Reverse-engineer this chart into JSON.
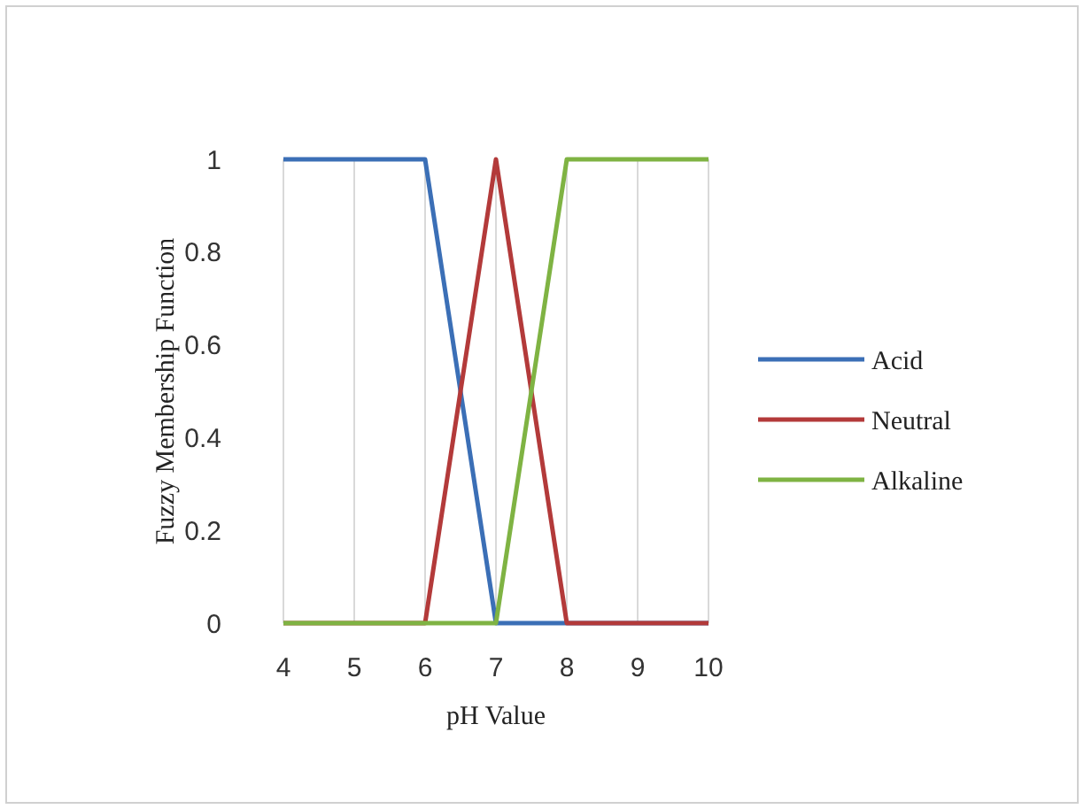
{
  "chart_data": {
    "type": "line",
    "xlabel": "pH Value",
    "ylabel": "Fuzzy Membership Function",
    "x": [
      4,
      5,
      6,
      7,
      8,
      9,
      10
    ],
    "series": [
      {
        "name": "Acid",
        "color": "#3b6fb6",
        "values": [
          1,
          1,
          1,
          0,
          0,
          0,
          0
        ]
      },
      {
        "name": "Neutral",
        "color": "#b33a3a",
        "values": [
          0,
          0,
          0,
          1,
          0,
          0,
          0
        ]
      },
      {
        "name": "Alkaline",
        "color": "#7fb343",
        "values": [
          0,
          0,
          0,
          0,
          1,
          1,
          1
        ]
      }
    ],
    "xlim": [
      4,
      10
    ],
    "xticks": [
      4,
      5,
      6,
      7,
      8,
      9,
      10
    ],
    "ylim": [
      0,
      1
    ],
    "yticks": [
      0,
      0.2,
      0.4,
      0.6,
      0.8,
      1
    ],
    "grid": "x",
    "legend": "right",
    "marker": "none",
    "line_style": "solid"
  }
}
